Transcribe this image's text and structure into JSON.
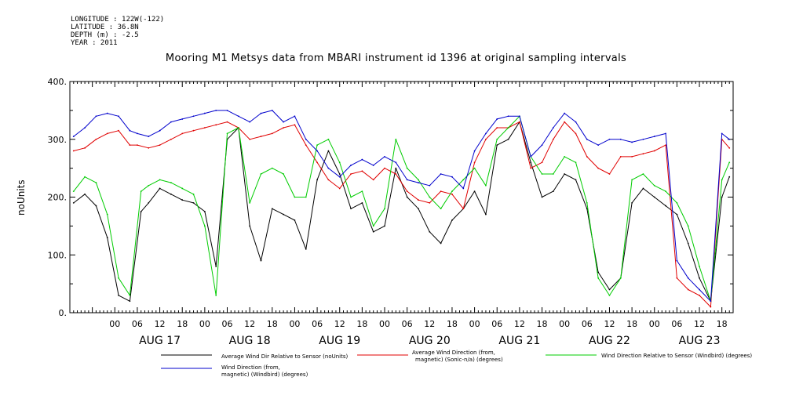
{
  "header": {
    "longitude": "LONGITUDE : 122W(-122)",
    "latitude": "LATITUDE : 36.8N",
    "depth": "DEPTH (m) : -2.5",
    "year": "YEAR : 2011"
  },
  "chart_data": {
    "type": "line",
    "title": "Mooring M1 Metsys data from MBARI instrument id 1396 at original sampling intervals",
    "ylabel": "noUnits",
    "ylim": [
      0,
      400
    ],
    "yticks": [
      "0.",
      "100.",
      "200.",
      "300.",
      "400."
    ],
    "xlim_hours": [
      -12,
      165
    ],
    "hour_ticks": [
      "00",
      "06",
      "12",
      "18",
      "00",
      "06",
      "12",
      "18",
      "00",
      "06",
      "12",
      "18",
      "00",
      "06",
      "12",
      "18",
      "00",
      "06",
      "12",
      "18",
      "00",
      "06",
      "12",
      "18",
      "00",
      "06",
      "12",
      "18"
    ],
    "day_labels": [
      "AUG 17",
      "AUG 18",
      "AUG 19",
      "AUG 20",
      "AUG 21",
      "AUG 22",
      "AUG 23"
    ],
    "grid": false,
    "legend_placement": "bottom",
    "series": [
      {
        "name": "Average Wind Dir Relative to Sensor (noUnits)",
        "color": "#000000",
        "legend_lines": [
          "Average Wind Dir Relative to Sensor (noUnits)"
        ],
        "x": [
          -11,
          -8,
          -5,
          -2,
          1,
          4,
          7,
          9,
          12,
          15,
          18,
          21,
          24,
          27,
          30,
          33,
          36,
          39,
          42,
          45,
          48,
          51,
          54,
          57,
          60,
          63,
          66,
          69,
          72,
          75,
          78,
          81,
          84,
          87,
          90,
          93,
          96,
          99,
          102,
          105,
          108,
          111,
          114,
          117,
          120,
          123,
          126,
          129,
          132,
          135,
          138,
          141,
          144,
          147,
          150,
          153,
          156,
          159,
          162,
          164
        ],
        "y": [
          190,
          205,
          185,
          130,
          30,
          20,
          175,
          190,
          215,
          205,
          195,
          190,
          175,
          80,
          300,
          320,
          150,
          90,
          180,
          170,
          160,
          110,
          230,
          280,
          240,
          180,
          190,
          140,
          150,
          250,
          200,
          180,
          140,
          120,
          160,
          180,
          210,
          170,
          290,
          300,
          330,
          260,
          200,
          210,
          240,
          230,
          180,
          70,
          40,
          60,
          190,
          215,
          200,
          185,
          170,
          120,
          60,
          20,
          200,
          235
        ]
      },
      {
        "name": "Average Wind Direction (from, magnetic) (Sonic-n/a) (degrees)",
        "color": "#e00000",
        "legend_lines": [
          "Average Wind Direction (from,",
          "magnetic) (Sonic-n/a) (degrees)"
        ],
        "x": [
          -11,
          -8,
          -5,
          -2,
          1,
          4,
          6,
          9,
          12,
          15,
          18,
          21,
          24,
          27,
          30,
          33,
          36,
          39,
          42,
          45,
          48,
          51,
          54,
          57,
          60,
          63,
          66,
          69,
          72,
          75,
          78,
          81,
          84,
          87,
          90,
          93,
          96,
          99,
          102,
          105,
          108,
          111,
          114,
          117,
          120,
          123,
          126,
          129,
          132,
          135,
          138,
          141,
          144,
          147,
          150,
          153,
          156,
          159,
          162,
          164
        ],
        "y": [
          280,
          285,
          300,
          310,
          315,
          290,
          290,
          285,
          290,
          300,
          310,
          315,
          320,
          325,
          330,
          320,
          300,
          305,
          310,
          320,
          325,
          290,
          260,
          230,
          215,
          240,
          245,
          230,
          250,
          240,
          210,
          195,
          190,
          210,
          205,
          180,
          260,
          300,
          320,
          320,
          330,
          250,
          260,
          300,
          330,
          310,
          270,
          250,
          240,
          270,
          270,
          275,
          280,
          290,
          60,
          40,
          30,
          10,
          300,
          285
        ]
      },
      {
        "name": "Wind Direction Relative to Sensor (Windbird) (degrees)",
        "color": "#00cc00",
        "legend_lines": [
          "Wind Direction Relative to Sensor (Windbird) (degrees)"
        ],
        "x": [
          -11,
          -8,
          -5,
          -2,
          1,
          4,
          7,
          9,
          12,
          15,
          18,
          21,
          24,
          27,
          30,
          33,
          36,
          39,
          42,
          45,
          48,
          51,
          54,
          57,
          60,
          63,
          66,
          69,
          72,
          75,
          78,
          81,
          84,
          87,
          90,
          93,
          96,
          99,
          102,
          105,
          108,
          111,
          114,
          117,
          120,
          123,
          126,
          129,
          132,
          135,
          138,
          141,
          144,
          147,
          150,
          153,
          156,
          159,
          162,
          164
        ],
        "y": [
          210,
          235,
          225,
          170,
          60,
          30,
          210,
          220,
          230,
          225,
          215,
          205,
          150,
          30,
          310,
          320,
          190,
          240,
          250,
          240,
          200,
          200,
          290,
          300,
          260,
          200,
          210,
          150,
          180,
          300,
          250,
          230,
          200,
          180,
          210,
          230,
          250,
          220,
          300,
          320,
          340,
          270,
          240,
          240,
          270,
          260,
          190,
          60,
          30,
          60,
          230,
          240,
          220,
          210,
          190,
          150,
          80,
          20,
          230,
          260
        ]
      },
      {
        "name": "Wind Direction (from, magnetic) (Windbird) (degrees)",
        "color": "#0000cc",
        "legend_lines": [
          "Wind Direction (from,",
          "magnetic) (Windbird) (degrees)"
        ],
        "x": [
          -11,
          -8,
          -5,
          -2,
          1,
          4,
          6,
          9,
          12,
          15,
          18,
          21,
          24,
          27,
          30,
          33,
          36,
          39,
          42,
          45,
          48,
          51,
          54,
          57,
          60,
          63,
          66,
          69,
          72,
          75,
          78,
          81,
          84,
          87,
          90,
          93,
          96,
          99,
          102,
          105,
          108,
          111,
          114,
          117,
          120,
          123,
          126,
          129,
          132,
          135,
          138,
          141,
          144,
          147,
          150,
          153,
          156,
          159,
          162,
          164
        ],
        "y": [
          305,
          320,
          340,
          345,
          340,
          315,
          310,
          305,
          315,
          330,
          335,
          340,
          345,
          350,
          350,
          340,
          330,
          345,
          350,
          330,
          340,
          300,
          280,
          250,
          235,
          255,
          265,
          255,
          270,
          260,
          230,
          225,
          220,
          240,
          235,
          215,
          280,
          310,
          335,
          340,
          340,
          270,
          290,
          320,
          345,
          330,
          300,
          290,
          300,
          300,
          295,
          300,
          305,
          310,
          90,
          60,
          40,
          20,
          310,
          300
        ]
      }
    ]
  }
}
